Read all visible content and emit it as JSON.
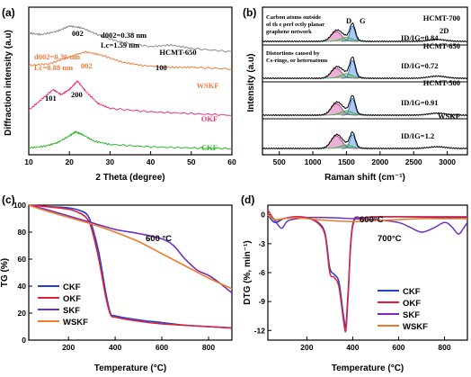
{
  "chart_data": [
    {
      "panel": "(a)",
      "type": "line",
      "xlabel": "2 Theta (degree)",
      "ylabel": "Diffraction intensity (a.u)",
      "xlim": [
        10,
        60
      ],
      "xticks": [
        "10",
        "20",
        "30",
        "40",
        "50",
        "60"
      ],
      "series": [
        {
          "name": "CKF",
          "color": "#2db52d",
          "x": [
            10,
            14,
            17,
            20,
            21.5,
            23,
            26,
            30,
            40,
            50,
            60
          ],
          "y": [
            0.15,
            0.2,
            0.3,
            0.5,
            0.62,
            0.55,
            0.35,
            0.25,
            0.18,
            0.15,
            0.13
          ]
        },
        {
          "name": "OKF",
          "color": "#e8327d",
          "x": [
            10,
            13,
            16,
            18,
            20,
            22,
            24,
            27,
            30,
            40,
            50,
            60
          ],
          "y": [
            1.25,
            1.55,
            1.85,
            1.7,
            1.85,
            2.1,
            1.8,
            1.45,
            1.3,
            1.2,
            1.15,
            1.1
          ]
        },
        {
          "name": "WSKF",
          "color": "#f07a3a",
          "x": [
            10,
            15,
            20,
            24,
            28,
            33,
            38,
            45,
            50,
            60
          ],
          "y": [
            2.55,
            2.6,
            2.8,
            2.95,
            2.85,
            2.65,
            2.55,
            2.5,
            2.5,
            2.45
          ]
        },
        {
          "name": "HCMT-650",
          "color": "#888888",
          "x": [
            10,
            13,
            17,
            20,
            23,
            27,
            32,
            40,
            45,
            50,
            60
          ],
          "y": [
            3.5,
            3.45,
            3.55,
            3.7,
            3.65,
            3.45,
            3.25,
            3.1,
            3.15,
            3.05,
            2.95
          ]
        }
      ],
      "annotations": {
        "d1": "d002=0.38 nm",
        "lc1": "Lc=1.59 nm",
        "d2": "d002=0.36 nm",
        "lc2": "Lc=0.88 nm",
        "p002a": "002",
        "p002b": "002",
        "p100": "100",
        "p101": "101",
        "p200": "200"
      }
    },
    {
      "panel": "(b)",
      "type": "line",
      "xlabel": "Raman shift (cm⁻¹)",
      "ylabel": "Intensity (a.u)",
      "xlim": [
        250,
        3300
      ],
      "xticks": [
        "500",
        "1000",
        "1500",
        "2000",
        "2500",
        "3000"
      ],
      "series": [
        {
          "name": "HCMT-700",
          "ratio": "ID/IG=0.84",
          "color": "#000000"
        },
        {
          "name": "HCMT-650",
          "ratio": "ID/IG=0.72",
          "color": "#000000"
        },
        {
          "name": "HCMT-500",
          "ratio": "ID/IG=0.91",
          "color": "#000000"
        },
        {
          "name": "WSKF",
          "ratio": "ID/IG=1.2",
          "color": "#000000"
        }
      ],
      "band_centers": {
        "D": 1350,
        "G": 1590
      },
      "annotations": {
        "top_note": [
          "Carbon atoms outside",
          "of th e perf ectly planar",
          "graphene network"
        ],
        "mid_note": [
          "Distortions caused by",
          "Cs-rings, or heteroatoms"
        ],
        "D": "D",
        "G": "G",
        "band2D": "2D"
      }
    },
    {
      "panel": "(c)",
      "type": "line",
      "xlabel": "Temperature (°C)",
      "ylabel": "TG (%)",
      "xlim": [
        30,
        900
      ],
      "ylim": [
        0,
        100
      ],
      "xticks": [
        "200",
        "400",
        "600",
        "800"
      ],
      "yticks": [
        "0",
        "20",
        "40",
        "60",
        "80",
        "100"
      ],
      "annotation": "600 °C",
      "series": [
        {
          "name": "CKF",
          "color": "#2040d0",
          "x": [
            30,
            100,
            200,
            250,
            280,
            300,
            330,
            360,
            380,
            400,
            500,
            600,
            700,
            800,
            900
          ],
          "y": [
            100,
            99,
            98,
            96,
            93,
            85,
            65,
            35,
            20,
            18,
            15,
            13,
            11,
            10,
            9
          ]
        },
        {
          "name": "OKF",
          "color": "#e0203a",
          "x": [
            30,
            100,
            200,
            250,
            280,
            300,
            330,
            360,
            380,
            400,
            500,
            600,
            700,
            800,
            900
          ],
          "y": [
            100,
            99,
            97,
            94,
            90,
            82,
            60,
            32,
            19,
            17,
            14,
            12,
            11,
            10,
            9
          ]
        },
        {
          "name": "SKF",
          "color": "#7030c0",
          "x": [
            30,
            100,
            200,
            300,
            400,
            500,
            600,
            650,
            700,
            750,
            800,
            850,
            900
          ],
          "y": [
            100,
            97,
            92,
            87,
            82,
            79,
            75,
            70,
            60,
            52,
            48,
            42,
            35
          ]
        },
        {
          "name": "WSKF",
          "color": "#f07a2a",
          "x": [
            30,
            100,
            200,
            300,
            400,
            500,
            600,
            700,
            800,
            900
          ],
          "y": [
            100,
            96,
            91,
            86,
            80,
            73,
            64,
            55,
            46,
            38
          ]
        }
      ]
    },
    {
      "panel": "(d)",
      "type": "line",
      "xlabel": "Temperature (°C)",
      "ylabel": "DTG (%, min⁻¹)",
      "xlim": [
        30,
        900
      ],
      "ylim": [
        -13,
        1
      ],
      "xticks": [
        "200",
        "400",
        "600",
        "800"
      ],
      "yticks": [
        "0",
        "-3",
        "-6",
        "-9",
        "-12"
      ],
      "annotations": {
        "a600": "600°C",
        "a700": "700°C"
      },
      "series": [
        {
          "name": "CKF",
          "color": "#2040d0",
          "x": [
            30,
            60,
            100,
            150,
            200,
            250,
            280,
            300,
            320,
            340,
            360,
            370,
            380,
            400,
            450,
            600,
            800,
            900
          ],
          "y": [
            0,
            -0.8,
            -0.4,
            -0.2,
            -0.3,
            -0.8,
            -2,
            -5.5,
            -6.2,
            -7,
            -10.5,
            -11.5,
            -8,
            -1,
            -0.3,
            -0.2,
            -0.3,
            -0.3
          ]
        },
        {
          "name": "OKF",
          "color": "#e0203a",
          "x": [
            30,
            60,
            100,
            150,
            200,
            250,
            280,
            300,
            320,
            340,
            360,
            370,
            380,
            400,
            450,
            600,
            800,
            900
          ],
          "y": [
            0.5,
            -0.5,
            -0.4,
            -0.2,
            -0.3,
            -0.9,
            -2.2,
            -6,
            -6.5,
            -7.5,
            -11,
            -12,
            -8.5,
            -1.2,
            -0.3,
            -0.2,
            -0.2,
            -0.2
          ]
        },
        {
          "name": "SKF",
          "color": "#7030c0",
          "x": [
            30,
            60,
            90,
            120,
            200,
            300,
            400,
            500,
            600,
            650,
            700,
            750,
            800,
            830,
            860,
            880,
            900
          ],
          "y": [
            0,
            -0.6,
            -1.4,
            -0.6,
            -0.3,
            -0.3,
            -0.4,
            -0.5,
            -0.8,
            -1.3,
            -1.8,
            -1.4,
            -0.8,
            -1.2,
            -2,
            -1.5,
            -0.8
          ]
        },
        {
          "name": "WSKF",
          "color": "#f07a2a",
          "x": [
            30,
            60,
            100,
            150,
            200,
            300,
            400,
            500,
            600,
            700,
            800,
            900
          ],
          "y": [
            0,
            -0.5,
            -0.4,
            -0.3,
            -0.4,
            -0.6,
            -0.7,
            -0.6,
            -0.5,
            -0.4,
            -0.4,
            -0.4
          ]
        }
      ]
    }
  ]
}
